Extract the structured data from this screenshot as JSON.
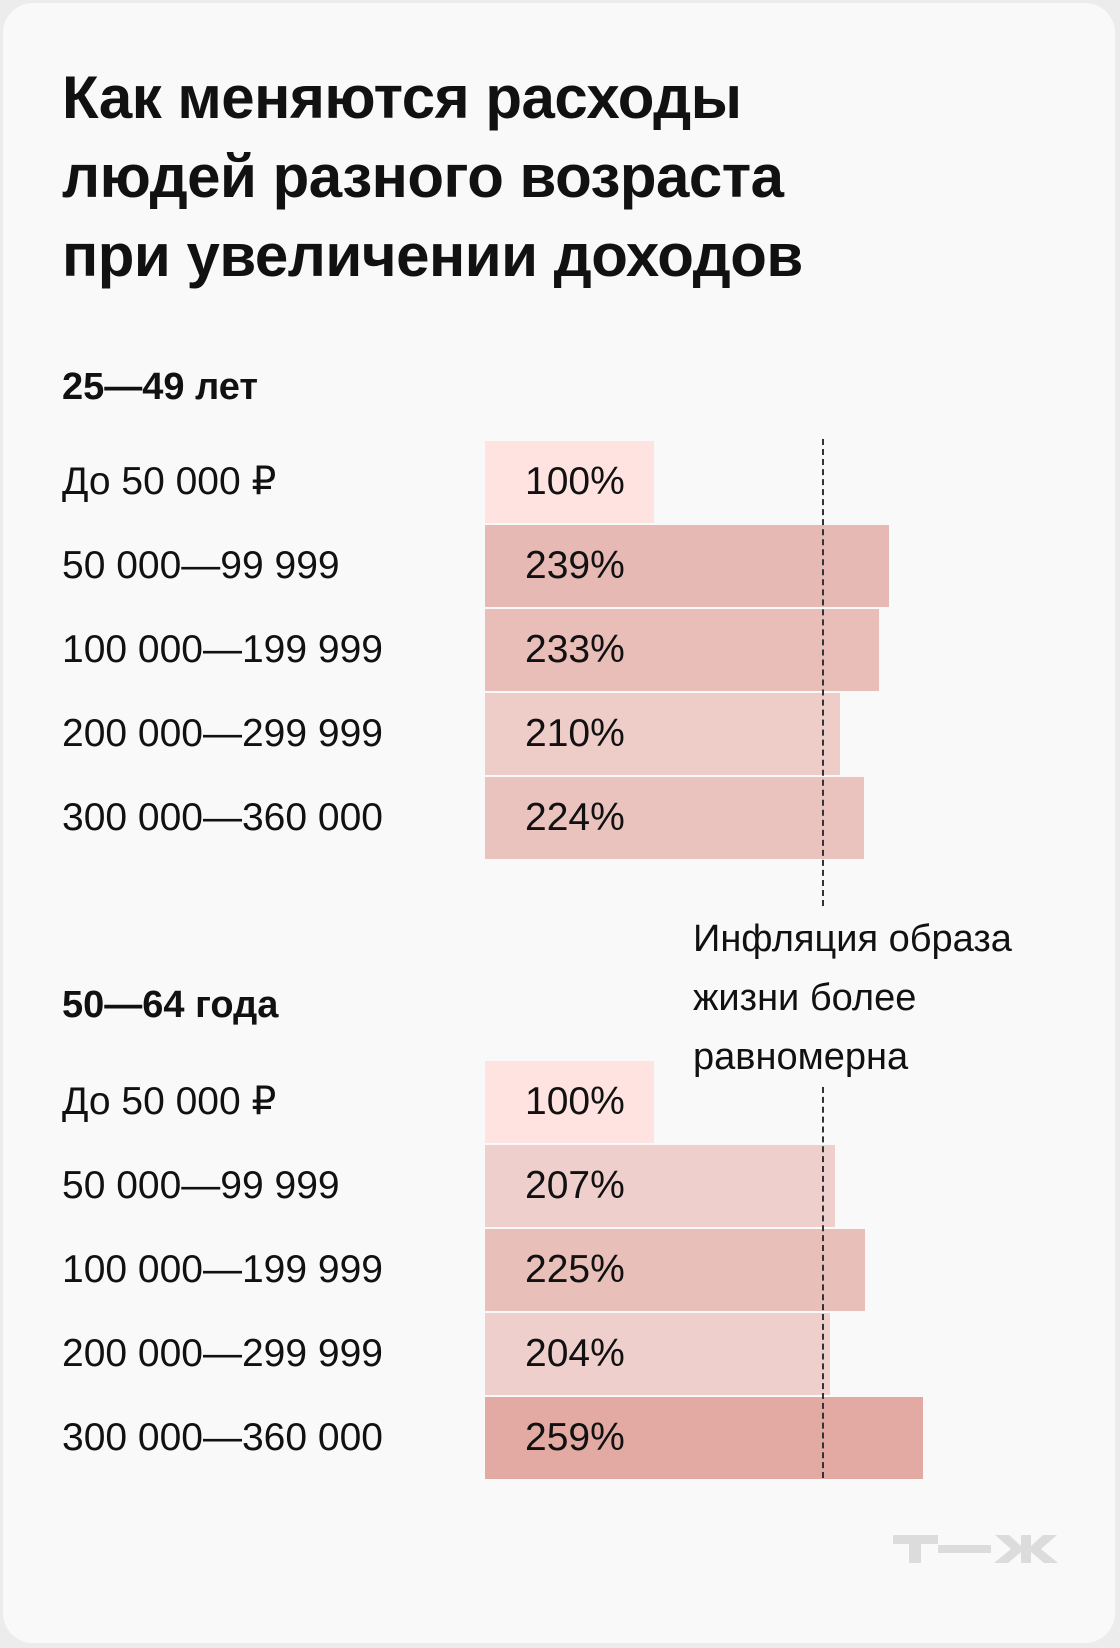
{
  "title": [
    "Как меняются расходы",
    "людей разного возраста",
    "при увеличении доходов"
  ],
  "chart_data": {
    "type": "bar",
    "orientation": "horizontal",
    "title": "Как меняются расходы людей разного возраста при увеличении доходов",
    "reference_line": 200,
    "annotation": [
      "Инфляция образа",
      "жизни более",
      "равномерна"
    ],
    "groups": [
      {
        "name": "25—49 лет",
        "categories": [
          "До 50 000 ₽",
          "50 000—99 999",
          "100 000—199 999",
          "200 000—299 999",
          "300 000—360 000"
        ],
        "values": [
          100,
          239,
          233,
          210,
          224
        ],
        "labels": [
          "100%",
          "239%",
          "233%",
          "210%",
          "224%"
        ],
        "colors": [
          "#ffe3e0",
          "#e6b9b4",
          "#e9bdb8",
          "#eeccc8",
          "#eac2be"
        ]
      },
      {
        "name": "50—64 года",
        "categories": [
          "До 50 000 ₽",
          "50 000—99 999",
          "100 000—199 999",
          "200 000—299 999",
          "300 000—360 000"
        ],
        "values": [
          100,
          207,
          225,
          204,
          259
        ],
        "labels": [
          "100%",
          "207%",
          "225%",
          "204%",
          "259%"
        ],
        "colors": [
          "#ffe3e0",
          "#efcfcb",
          "#e9bfba",
          "#efcfcb",
          "#e3aaa3"
        ]
      }
    ]
  },
  "logo": "Т—Ж"
}
